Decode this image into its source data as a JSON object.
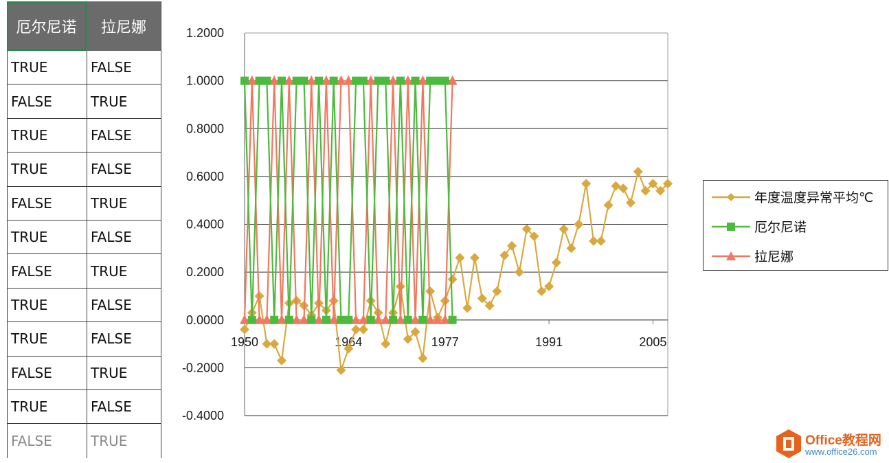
{
  "table": {
    "headers": [
      "厄尔尼诺",
      "拉尼娜"
    ],
    "rows": [
      [
        "TRUE",
        "FALSE"
      ],
      [
        "FALSE",
        "TRUE"
      ],
      [
        "TRUE",
        "FALSE"
      ],
      [
        "TRUE",
        "FALSE"
      ],
      [
        "FALSE",
        "TRUE"
      ],
      [
        "TRUE",
        "FALSE"
      ],
      [
        "FALSE",
        "TRUE"
      ],
      [
        "TRUE",
        "FALSE"
      ],
      [
        "TRUE",
        "FALSE"
      ],
      [
        "FALSE",
        "TRUE"
      ],
      [
        "TRUE",
        "FALSE"
      ],
      [
        "FALSE",
        "TRUE"
      ]
    ]
  },
  "chart_data": {
    "type": "line",
    "title": "",
    "xlabel": "",
    "ylabel": "",
    "xlim": [
      1950,
      2007
    ],
    "ylim": [
      -0.4,
      1.2
    ],
    "x_ticks": [
      1950,
      1964,
      1977,
      1991,
      2005
    ],
    "y_ticks": [
      -0.4,
      -0.2,
      0.0,
      0.2,
      0.4,
      0.6,
      0.8,
      1.0,
      1.2
    ],
    "y_tick_labels": [
      "-0.4000",
      "-0.2000",
      "0.0000",
      "0.2000",
      "0.4000",
      "0.6000",
      "0.8000",
      "1.0000",
      "1.2000"
    ],
    "grid": "horizontal",
    "legend_position": "right",
    "series": [
      {
        "name": "年度温度异常平均℃",
        "color": "#d9a93f",
        "marker": "diamond",
        "x": [
          1950,
          1951,
          1952,
          1953,
          1954,
          1955,
          1956,
          1957,
          1958,
          1959,
          1960,
          1961,
          1962,
          1963,
          1964,
          1965,
          1966,
          1967,
          1968,
          1969,
          1970,
          1971,
          1972,
          1973,
          1974,
          1975,
          1976,
          1977,
          1978,
          1979,
          1980,
          1981,
          1982,
          1983,
          1984,
          1985,
          1986,
          1987,
          1988,
          1989,
          1990,
          1991,
          1992,
          1993,
          1994,
          1995,
          1996,
          1997,
          1998,
          1999,
          2000,
          2001,
          2002,
          2003,
          2004,
          2005,
          2006,
          2007
        ],
        "values": [
          -0.04,
          0.03,
          0.1,
          -0.1,
          -0.1,
          -0.17,
          0.07,
          0.08,
          0.06,
          0.02,
          0.07,
          0.04,
          0.08,
          -0.21,
          -0.12,
          -0.04,
          -0.04,
          0.08,
          0.03,
          -0.1,
          0.03,
          0.14,
          -0.08,
          -0.05,
          -0.16,
          0.12,
          0.01,
          0.08,
          0.17,
          0.26,
          0.05,
          0.26,
          0.09,
          0.06,
          0.12,
          0.27,
          0.31,
          0.2,
          0.38,
          0.35,
          0.12,
          0.14,
          0.24,
          0.38,
          0.3,
          0.4,
          0.57,
          0.33,
          0.33,
          0.48,
          0.56,
          0.55,
          0.49,
          0.62,
          0.54,
          0.57,
          0.54,
          0.57
        ]
      },
      {
        "name": "厄尔尼诺",
        "color": "#4cba3c",
        "marker": "square",
        "x": [
          1950,
          1951,
          1952,
          1953,
          1954,
          1955,
          1956,
          1957,
          1958,
          1959,
          1960,
          1961,
          1962,
          1963,
          1964,
          1965,
          1966,
          1967,
          1968,
          1969,
          1970,
          1971,
          1972,
          1973,
          1974,
          1975,
          1976,
          1977,
          1978
        ],
        "values": [
          1,
          0,
          1,
          1,
          0,
          1,
          0,
          1,
          1,
          0,
          1,
          0,
          1,
          0,
          0,
          1,
          1,
          0,
          1,
          1,
          0,
          1,
          0,
          1,
          0,
          1,
          1,
          1,
          0
        ]
      },
      {
        "name": "拉尼娜",
        "color": "#f07860",
        "marker": "triangle",
        "x": [
          1950,
          1951,
          1952,
          1953,
          1954,
          1955,
          1956,
          1957,
          1958,
          1959,
          1960,
          1961,
          1962,
          1963,
          1964,
          1965,
          1966,
          1967,
          1968,
          1969,
          1970,
          1971,
          1972,
          1973,
          1974,
          1975,
          1976,
          1977,
          1978
        ],
        "values": [
          0,
          1,
          0,
          0,
          1,
          0,
          1,
          0,
          0,
          1,
          0,
          1,
          0,
          1,
          1,
          0,
          0,
          1,
          0,
          0,
          1,
          0,
          1,
          0,
          1,
          0,
          0,
          0,
          1
        ]
      }
    ]
  },
  "logo": {
    "line1": "Office教程网",
    "line2": "www.office26.com"
  }
}
